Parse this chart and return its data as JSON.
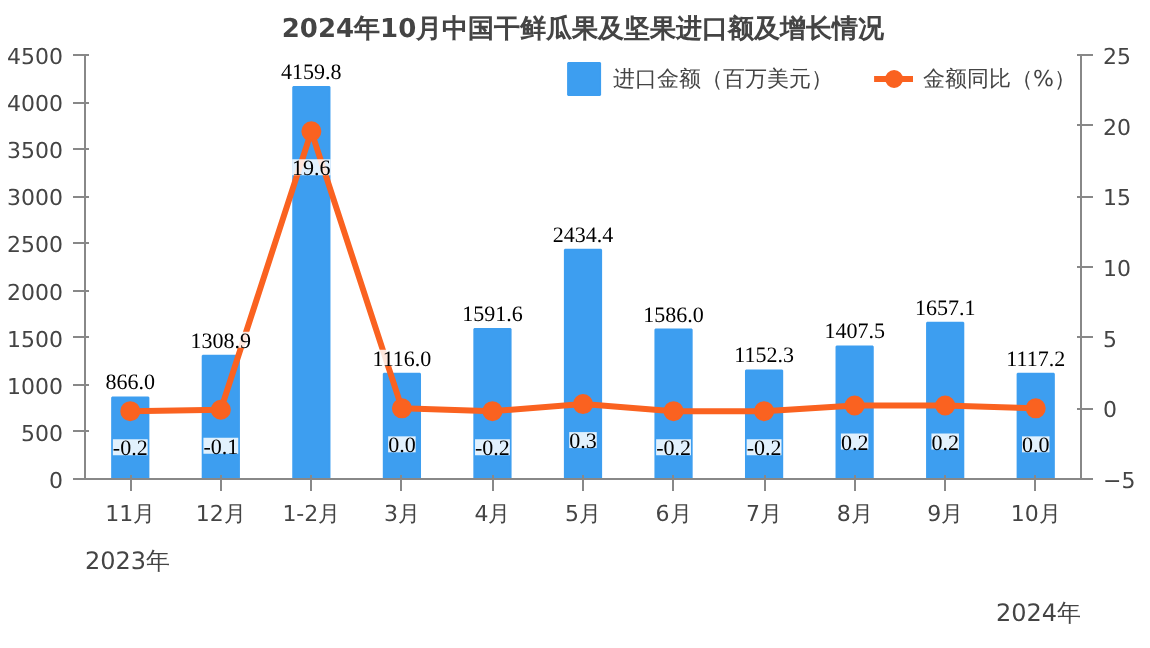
{
  "chart_data": {
    "type": "bar",
    "title": "2024年10月中国干鲜瓜果及坚果进口额及增长情况",
    "categories": [
      "11月",
      "12月",
      "1-2月",
      "3月",
      "4月",
      "5月",
      "6月",
      "7月",
      "8月",
      "9月",
      "10月"
    ],
    "series": [
      {
        "name": "进口金额（百万美元）",
        "color": "#3d9ef0",
        "values": [
          866.0,
          1308.9,
          4159.8,
          1116.0,
          1591.6,
          2434.4,
          1586.0,
          1152.3,
          1407.5,
          1657.1,
          1117.2
        ],
        "value_labels": [
          "866.0",
          "1308.9",
          "4159.8",
          "1116.0",
          "1591.6",
          "2434.4",
          "1586.0",
          "1152.3",
          "1407.5",
          "1657.1",
          "1117.2"
        ]
      },
      {
        "name": "金额同比（%）",
        "type": "line",
        "axis": "y2",
        "color": "#fa6220",
        "marker": "circle",
        "values": [
          -0.2,
          -0.1,
          19.6,
          0.0,
          -0.2,
          0.3,
          -0.2,
          -0.2,
          0.2,
          0.2,
          0.0
        ],
        "value_labels": [
          "-0.2",
          "-0.1",
          "19.6",
          "0.0",
          "-0.2",
          "0.3",
          "-0.2",
          "-0.2",
          "0.2",
          "0.2",
          "0.0"
        ]
      }
    ],
    "ylim": [
      0,
      4500
    ],
    "yticks": [
      0,
      500,
      1000,
      1500,
      2000,
      2500,
      3000,
      3500,
      4000,
      4500
    ],
    "y2lim": [
      -5,
      25
    ],
    "y2ticks": [
      -5,
      0,
      5,
      10,
      15,
      20,
      25
    ],
    "grid": false,
    "legend": "top right",
    "annotations": [
      "2023年",
      "2024年"
    ]
  }
}
